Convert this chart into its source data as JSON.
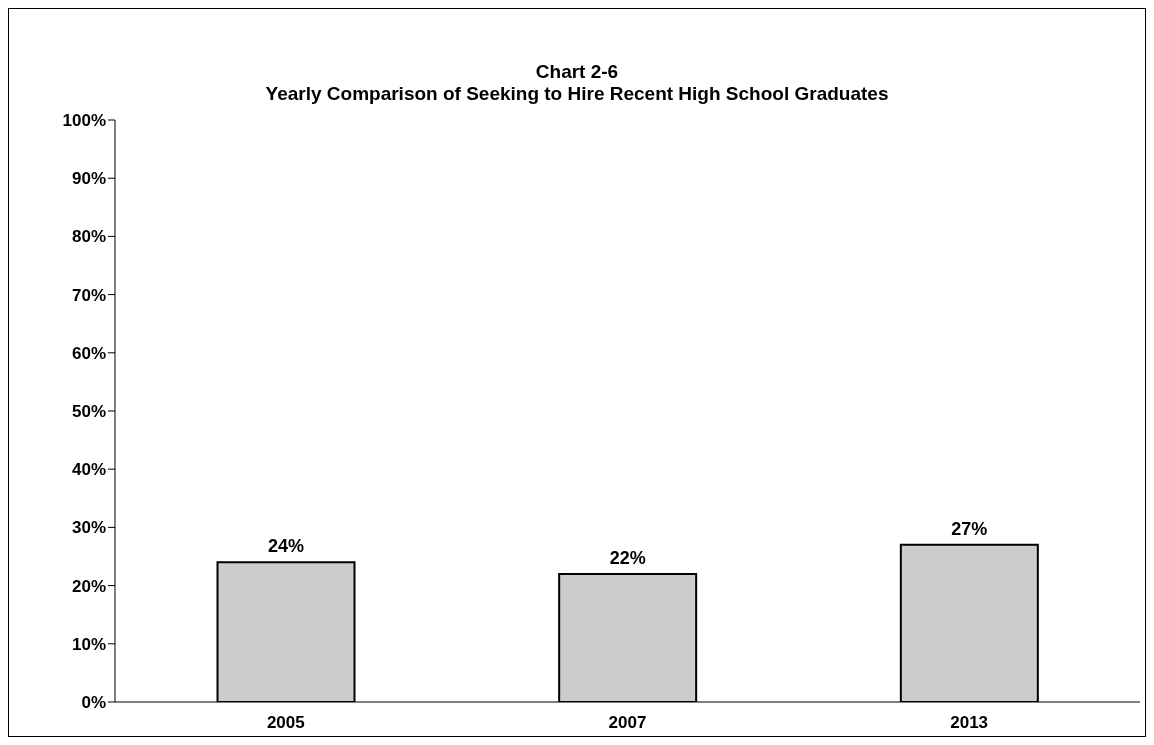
{
  "chart_data": {
    "type": "bar",
    "title": "Chart 2-6",
    "subtitle": "Yearly Comparison of Seeking to Hire Recent High School Graduates",
    "categories": [
      "2005",
      "2007",
      "2013"
    ],
    "values": [
      24,
      22,
      27
    ],
    "value_labels": [
      "24%",
      "22%",
      "27%"
    ],
    "color": "#cccccc",
    "ylim": [
      0,
      100
    ],
    "yticks": [
      {
        "value": 0,
        "label": "0%"
      },
      {
        "value": 10,
        "label": "10%"
      },
      {
        "value": 20,
        "label": "20%"
      },
      {
        "value": 30,
        "label": "30%"
      },
      {
        "value": 40,
        "label": "40%"
      },
      {
        "value": 50,
        "label": "50%"
      },
      {
        "value": 60,
        "label": "60%"
      },
      {
        "value": 70,
        "label": "70%"
      },
      {
        "value": 80,
        "label": "80%"
      },
      {
        "value": 90,
        "label": "90%"
      },
      {
        "value": 100,
        "label": "100%"
      }
    ],
    "grid": false,
    "legend": false
  }
}
